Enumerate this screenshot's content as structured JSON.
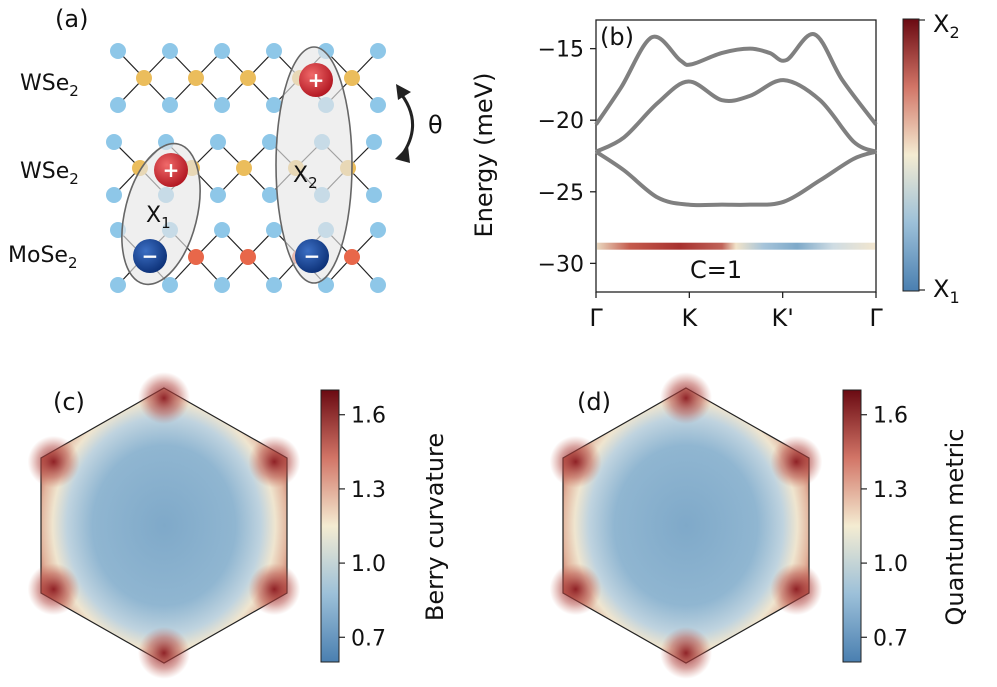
{
  "panels": {
    "a": {
      "label": "(a)",
      "layers": [
        {
          "name": "WSe",
          "sub": "2"
        },
        {
          "name": "WSe",
          "sub": "2"
        },
        {
          "name": "MoSe",
          "sub": "2"
        }
      ],
      "twist_angle": "θ",
      "exciton1": {
        "name": "X",
        "sub": "1"
      },
      "exciton2": {
        "name": "X",
        "sub": "2"
      },
      "plus": "+",
      "minus": "−",
      "colors": {
        "se_atom": "#8ec7e8",
        "w_atom": "#ebbd5c",
        "mo_atom": "#e8674a",
        "hole": "#c41e2b",
        "electron": "#0f3c8c"
      }
    },
    "b": {
      "label": "(b)",
      "ylabel": "Energy (meV)",
      "yticks": [
        "−15",
        "−20",
        "−25",
        "−30"
      ],
      "xticks": [
        "Γ",
        "K",
        "K'",
        "Γ"
      ],
      "chern_label": "C=1",
      "colorbar": {
        "top": {
          "name": "X",
          "sub": "2"
        },
        "bottom": {
          "name": "X",
          "sub": "1"
        }
      }
    },
    "c": {
      "label": "(c)",
      "colorbar_label": "Berry curvature",
      "ticks": [
        "1.6",
        "1.3",
        "1.0",
        "0.7"
      ]
    },
    "d": {
      "label": "(d)",
      "colorbar_label": "Quantum metric",
      "ticks": [
        "1.6",
        "1.3",
        "1.0",
        "0.7"
      ]
    }
  },
  "chart_data": [
    {
      "type": "line",
      "panel": "b",
      "ylabel": "Energy (meV)",
      "ylim": [
        -32,
        -13
      ],
      "x": [
        "Γ",
        "K",
        "K'",
        "Γ"
      ],
      "series": [
        {
          "name": "",
          "points": [
            [
              0.0,
              -20.3
            ],
            [
              0.09,
              -17.7
            ],
            [
              0.2,
              -14.2
            ],
            [
              0.3,
              -15.8
            ],
            [
              0.34,
              -16.1
            ],
            [
              0.45,
              -15.3
            ],
            [
              0.55,
              -15.0
            ],
            [
              0.62,
              -15.3
            ],
            [
              0.68,
              -15.8
            ],
            [
              0.78,
              -14.0
            ],
            [
              0.88,
              -17.2
            ],
            [
              1.0,
              -20.3
            ]
          ]
        },
        {
          "name": "",
          "points": [
            [
              0.0,
              -22.2
            ],
            [
              0.1,
              -21.2
            ],
            [
              0.22,
              -18.8
            ],
            [
              0.33,
              -17.3
            ],
            [
              0.45,
              -18.6
            ],
            [
              0.55,
              -18.3
            ],
            [
              0.67,
              -17.2
            ],
            [
              0.8,
              -18.6
            ],
            [
              0.92,
              -21.5
            ],
            [
              1.0,
              -22.2
            ]
          ]
        },
        {
          "name": "",
          "points": [
            [
              0.0,
              -22.2
            ],
            [
              0.1,
              -23.5
            ],
            [
              0.22,
              -25.4
            ],
            [
              0.33,
              -25.9
            ],
            [
              0.45,
              -25.9
            ],
            [
              0.55,
              -25.9
            ],
            [
              0.67,
              -25.7
            ],
            [
              0.8,
              -24.2
            ],
            [
              0.92,
              -22.7
            ],
            [
              1.0,
              -22.2
            ]
          ]
        }
      ],
      "flat_band": {
        "energy": -28.8,
        "chern": "C=1",
        "character": [
          [
            0.0,
            0.4
          ],
          [
            0.1,
            0.8
          ],
          [
            0.2,
            0.9
          ],
          [
            0.33,
            0.95
          ],
          [
            0.45,
            0.85
          ],
          [
            0.5,
            0.5
          ],
          [
            0.58,
            0.2
          ],
          [
            0.66,
            0.15
          ],
          [
            0.75,
            0.35
          ],
          [
            0.88,
            0.5
          ],
          [
            1.0,
            0.45
          ]
        ]
      }
    },
    {
      "type": "heatmap",
      "panel": "c",
      "colorbar_label": "Berry curvature",
      "vmin": 0.6,
      "vmax": 1.7,
      "center_value": 0.8,
      "corner_value": 1.7
    },
    {
      "type": "heatmap",
      "panel": "d",
      "colorbar_label": "Quantum metric",
      "vmin": 0.6,
      "vmax": 1.7,
      "center_value": 0.8,
      "corner_value": 1.7
    }
  ]
}
